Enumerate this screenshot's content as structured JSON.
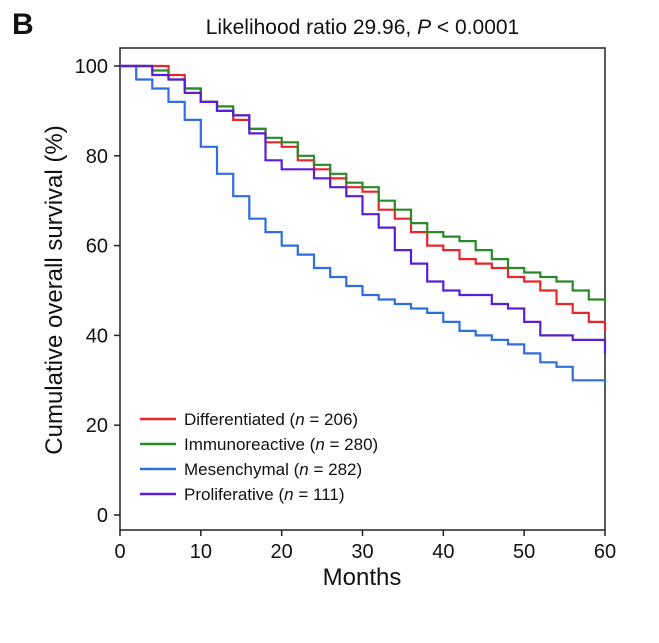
{
  "panel_label": "B",
  "chart_data": {
    "type": "line",
    "title": {
      "prefix": "Likelihood ratio 29.96, ",
      "italic": "P",
      "suffix": " < 0.0001"
    },
    "xlabel": "Months",
    "ylabel": "Cumulative overall survival (%)",
    "xlim": [
      0,
      60
    ],
    "ylim": [
      0,
      100
    ],
    "xticks": [
      0,
      10,
      20,
      30,
      40,
      50,
      60
    ],
    "yticks": [
      0,
      20,
      40,
      60,
      80,
      100
    ],
    "grid": false,
    "legend_position": "bottom-left",
    "series": [
      {
        "name": "Differentiated",
        "n_label": "n",
        "n_value": " = 206",
        "color": "#e8262a",
        "points": [
          [
            0,
            100
          ],
          [
            4,
            100
          ],
          [
            6,
            98
          ],
          [
            8,
            95
          ],
          [
            10,
            92
          ],
          [
            12,
            90
          ],
          [
            14,
            88
          ],
          [
            16,
            86
          ],
          [
            18,
            83
          ],
          [
            20,
            82
          ],
          [
            22,
            79
          ],
          [
            24,
            77
          ],
          [
            26,
            75
          ],
          [
            28,
            73
          ],
          [
            30,
            72
          ],
          [
            32,
            68
          ],
          [
            34,
            66
          ],
          [
            36,
            63
          ],
          [
            38,
            60
          ],
          [
            40,
            59
          ],
          [
            42,
            57
          ],
          [
            44,
            56
          ],
          [
            46,
            55
          ],
          [
            48,
            53
          ],
          [
            50,
            52
          ],
          [
            52,
            50
          ],
          [
            54,
            47
          ],
          [
            56,
            45
          ],
          [
            58,
            43
          ],
          [
            60,
            41
          ]
        ]
      },
      {
        "name": "Immunoreactive",
        "n_label": "n",
        "n_value": " = 280",
        "color": "#2a8a2a",
        "points": [
          [
            0,
            100
          ],
          [
            4,
            99
          ],
          [
            6,
            97
          ],
          [
            8,
            95
          ],
          [
            10,
            92
          ],
          [
            12,
            91
          ],
          [
            14,
            89
          ],
          [
            16,
            86
          ],
          [
            18,
            84
          ],
          [
            20,
            83
          ],
          [
            22,
            80
          ],
          [
            24,
            78
          ],
          [
            26,
            76
          ],
          [
            28,
            74
          ],
          [
            30,
            73
          ],
          [
            32,
            70
          ],
          [
            34,
            68
          ],
          [
            36,
            65
          ],
          [
            38,
            63
          ],
          [
            40,
            62
          ],
          [
            42,
            61
          ],
          [
            44,
            59
          ],
          [
            46,
            57
          ],
          [
            48,
            55
          ],
          [
            50,
            54
          ],
          [
            52,
            53
          ],
          [
            54,
            52
          ],
          [
            56,
            50
          ],
          [
            58,
            48
          ],
          [
            60,
            47
          ]
        ]
      },
      {
        "name": "Mesenchymal",
        "n_label": "n",
        "n_value": " = 282",
        "color": "#2e6ee0",
        "points": [
          [
            0,
            100
          ],
          [
            2,
            97
          ],
          [
            4,
            95
          ],
          [
            6,
            92
          ],
          [
            8,
            88
          ],
          [
            10,
            82
          ],
          [
            12,
            76
          ],
          [
            14,
            71
          ],
          [
            16,
            66
          ],
          [
            18,
            63
          ],
          [
            20,
            60
          ],
          [
            22,
            58
          ],
          [
            24,
            55
          ],
          [
            26,
            53
          ],
          [
            28,
            51
          ],
          [
            30,
            49
          ],
          [
            32,
            48
          ],
          [
            34,
            47
          ],
          [
            36,
            46
          ],
          [
            38,
            45
          ],
          [
            40,
            43
          ],
          [
            42,
            41
          ],
          [
            44,
            40
          ],
          [
            46,
            39
          ],
          [
            48,
            38
          ],
          [
            50,
            36
          ],
          [
            52,
            34
          ],
          [
            54,
            33
          ],
          [
            56,
            30
          ],
          [
            58,
            30
          ],
          [
            60,
            29
          ]
        ]
      },
      {
        "name": "Proliferative",
        "n_label": "n",
        "n_value": " = 111",
        "color": "#5a1ed6",
        "points": [
          [
            0,
            100
          ],
          [
            4,
            98
          ],
          [
            6,
            97
          ],
          [
            8,
            94
          ],
          [
            10,
            92
          ],
          [
            12,
            90
          ],
          [
            14,
            89
          ],
          [
            16,
            85
          ],
          [
            18,
            79
          ],
          [
            20,
            77
          ],
          [
            22,
            77
          ],
          [
            24,
            75
          ],
          [
            26,
            73
          ],
          [
            28,
            71
          ],
          [
            30,
            67
          ],
          [
            32,
            64
          ],
          [
            34,
            59
          ],
          [
            36,
            56
          ],
          [
            38,
            52
          ],
          [
            40,
            50
          ],
          [
            42,
            49
          ],
          [
            44,
            49
          ],
          [
            46,
            47
          ],
          [
            48,
            46
          ],
          [
            50,
            43
          ],
          [
            52,
            40
          ],
          [
            54,
            40
          ],
          [
            56,
            39
          ],
          [
            58,
            39
          ],
          [
            60,
            36
          ]
        ]
      }
    ]
  }
}
